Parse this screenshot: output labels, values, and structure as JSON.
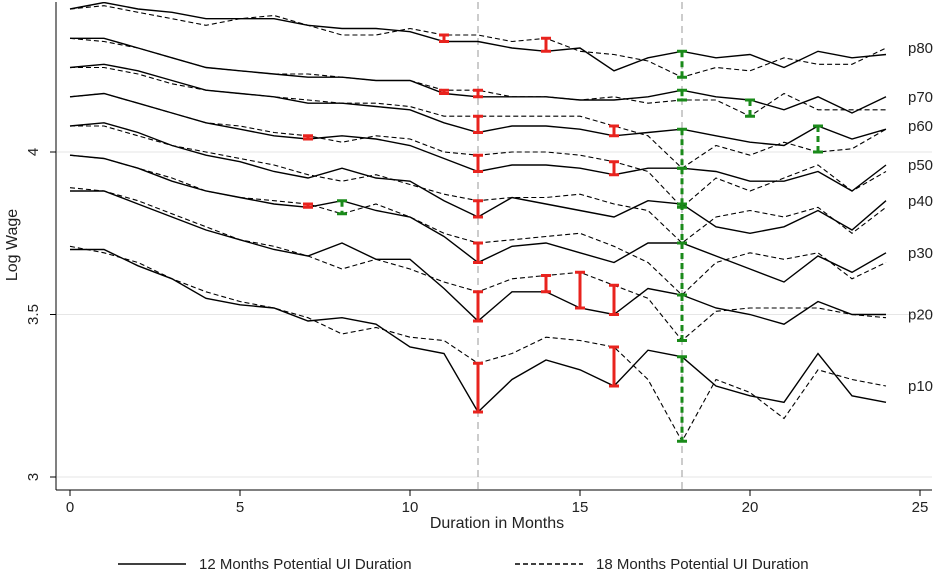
{
  "chart_data": {
    "type": "line",
    "xlabel": "Duration in Months",
    "ylabel": "Log Wage",
    "xlim": [
      0,
      25
    ],
    "ylim": [
      3,
      4.45
    ],
    "xticks": [
      0,
      5,
      10,
      15,
      20,
      25
    ],
    "yticks": [
      3,
      3.5,
      4
    ],
    "yticklabels": [
      "3",
      "3.5",
      "4"
    ],
    "grid": "horizontal",
    "vlines": [
      12,
      18
    ],
    "x": [
      0,
      1,
      2,
      3,
      4,
      5,
      6,
      7,
      8,
      9,
      10,
      11,
      12,
      13,
      14,
      15,
      16,
      17,
      18,
      19,
      20,
      21,
      22,
      23,
      24
    ],
    "legend": {
      "position": "bottom",
      "items": [
        {
          "label": "12 Months Potential UI Duration",
          "style": "solid"
        },
        {
          "label": "18 Months Potential UI Duration",
          "style": "dashed"
        }
      ]
    },
    "significance_colors": {
      "ui12_higher": "#e8231e",
      "ui18_higher": "#1a8a1a"
    },
    "series": [
      {
        "name": "p10",
        "ui12": [
          3.7,
          3.7,
          3.65,
          3.61,
          3.55,
          3.53,
          3.52,
          3.48,
          3.49,
          3.47,
          3.4,
          3.38,
          3.2,
          3.3,
          3.36,
          3.33,
          3.28,
          3.39,
          3.37,
          3.28,
          3.25,
          3.23,
          3.38,
          3.25,
          3.23
        ],
        "ui18": [
          3.71,
          3.69,
          3.66,
          3.61,
          3.57,
          3.54,
          3.52,
          3.49,
          3.44,
          3.46,
          3.43,
          3.42,
          3.35,
          3.38,
          3.43,
          3.42,
          3.4,
          3.3,
          3.11,
          3.3,
          3.26,
          3.18,
          3.33,
          3.3,
          3.28
        ]
      },
      {
        "name": "p20",
        "ui12": [
          3.88,
          3.88,
          3.84,
          3.8,
          3.76,
          3.73,
          3.7,
          3.68,
          3.72,
          3.67,
          3.67,
          3.58,
          3.48,
          3.57,
          3.57,
          3.52,
          3.5,
          3.58,
          3.56,
          3.52,
          3.5,
          3.47,
          3.54,
          3.5,
          3.5
        ],
        "ui18": [
          3.89,
          3.88,
          3.85,
          3.81,
          3.77,
          3.73,
          3.71,
          3.68,
          3.64,
          3.67,
          3.64,
          3.6,
          3.57,
          3.61,
          3.62,
          3.63,
          3.59,
          3.55,
          3.42,
          3.51,
          3.52,
          3.52,
          3.52,
          3.5,
          3.49
        ]
      },
      {
        "name": "p30",
        "ui12": [
          3.99,
          3.98,
          3.95,
          3.91,
          3.88,
          3.86,
          3.84,
          3.83,
          3.85,
          3.82,
          3.8,
          3.74,
          3.66,
          3.71,
          3.72,
          3.69,
          3.66,
          3.72,
          3.72,
          3.68,
          3.64,
          3.6,
          3.68,
          3.63,
          3.69
        ],
        "ui18": [
          3.99,
          3.98,
          3.95,
          3.92,
          3.88,
          3.86,
          3.85,
          3.84,
          3.81,
          3.84,
          3.8,
          3.75,
          3.72,
          3.73,
          3.74,
          3.75,
          3.71,
          3.66,
          3.56,
          3.66,
          3.69,
          3.67,
          3.69,
          3.61,
          3.66
        ]
      },
      {
        "name": "p40",
        "ui12": [
          4.08,
          4.09,
          4.06,
          4.02,
          3.99,
          3.97,
          3.94,
          3.92,
          3.95,
          3.92,
          3.91,
          3.85,
          3.8,
          3.86,
          3.84,
          3.82,
          3.8,
          3.85,
          3.84,
          3.77,
          3.75,
          3.77,
          3.82,
          3.76,
          3.85
        ],
        "ui18": [
          4.08,
          4.08,
          4.05,
          4.02,
          4.0,
          3.98,
          3.96,
          3.93,
          3.91,
          3.93,
          3.9,
          3.87,
          3.85,
          3.86,
          3.86,
          3.87,
          3.84,
          3.82,
          3.72,
          3.8,
          3.82,
          3.8,
          3.83,
          3.75,
          3.83
        ]
      },
      {
        "name": "p50",
        "ui12": [
          4.17,
          4.18,
          4.15,
          4.12,
          4.09,
          4.07,
          4.05,
          4.04,
          4.05,
          4.04,
          4.02,
          3.98,
          3.94,
          3.96,
          3.96,
          3.95,
          3.93,
          3.95,
          3.95,
          3.94,
          3.91,
          3.91,
          3.94,
          3.88,
          3.96
        ],
        "ui18": [
          4.17,
          4.18,
          4.15,
          4.12,
          4.09,
          4.08,
          4.06,
          4.05,
          4.03,
          4.05,
          4.04,
          4.0,
          3.99,
          4.0,
          4.0,
          3.99,
          3.97,
          3.94,
          3.83,
          3.92,
          3.88,
          3.92,
          3.96,
          3.88,
          3.94
        ]
      },
      {
        "name": "p60",
        "ui12": [
          4.26,
          4.27,
          4.25,
          4.22,
          4.19,
          4.18,
          4.17,
          4.15,
          4.15,
          4.14,
          4.13,
          4.09,
          4.06,
          4.08,
          4.08,
          4.07,
          4.05,
          4.06,
          4.07,
          4.05,
          4.03,
          4.02,
          4.08,
          4.04,
          4.07
        ],
        "ui18": [
          4.26,
          4.26,
          4.24,
          4.21,
          4.19,
          4.18,
          4.17,
          4.16,
          4.15,
          4.15,
          4.14,
          4.11,
          4.11,
          4.11,
          4.11,
          4.11,
          4.08,
          4.05,
          3.95,
          4.02,
          3.99,
          4.03,
          4.0,
          4.01,
          4.07
        ],
        "name_label_y": 4.08
      },
      {
        "name": "p70",
        "ui12": [
          4.35,
          4.35,
          4.32,
          4.29,
          4.26,
          4.25,
          4.24,
          4.23,
          4.23,
          4.22,
          4.22,
          4.18,
          4.17,
          4.17,
          4.17,
          4.16,
          4.16,
          4.17,
          4.19,
          4.17,
          4.16,
          4.13,
          4.17,
          4.12,
          4.17
        ],
        "ui18": [
          4.35,
          4.34,
          4.32,
          4.29,
          4.26,
          4.25,
          4.24,
          4.24,
          4.23,
          4.22,
          4.22,
          4.19,
          4.19,
          4.17,
          4.17,
          4.16,
          4.17,
          4.15,
          4.16,
          4.16,
          4.11,
          4.18,
          4.13,
          4.13,
          4.13
        ]
      },
      {
        "name": "p80",
        "ui12": [
          4.44,
          4.46,
          4.44,
          4.43,
          4.41,
          4.41,
          4.41,
          4.39,
          4.38,
          4.38,
          4.37,
          4.34,
          4.34,
          4.32,
          4.31,
          4.32,
          4.25,
          4.29,
          4.31,
          4.29,
          4.3,
          4.26,
          4.31,
          4.29,
          4.3
        ],
        "ui18": [
          4.44,
          4.45,
          4.43,
          4.41,
          4.39,
          4.41,
          4.42,
          4.39,
          4.36,
          4.36,
          4.38,
          4.36,
          4.36,
          4.34,
          4.35,
          4.31,
          4.3,
          4.28,
          4.23,
          4.26,
          4.25,
          4.29,
          4.27,
          4.27,
          4.32
        ]
      }
    ],
    "significance_markers": [
      {
        "series": "p10",
        "x": 12,
        "color": "red"
      },
      {
        "series": "p10",
        "x": 16,
        "color": "red"
      },
      {
        "series": "p10",
        "x": 18,
        "color": "green"
      },
      {
        "series": "p20",
        "x": 12,
        "color": "red"
      },
      {
        "series": "p20",
        "x": 14,
        "color": "red"
      },
      {
        "series": "p20",
        "x": 15,
        "color": "red"
      },
      {
        "series": "p20",
        "x": 16,
        "color": "red"
      },
      {
        "series": "p20",
        "x": 18,
        "color": "green"
      },
      {
        "series": "p30",
        "x": 7,
        "color": "red"
      },
      {
        "series": "p30",
        "x": 8,
        "color": "green"
      },
      {
        "series": "p30",
        "x": 12,
        "color": "red"
      },
      {
        "series": "p30",
        "x": 18,
        "color": "green"
      },
      {
        "series": "p40",
        "x": 12,
        "color": "red"
      },
      {
        "series": "p40",
        "x": 18,
        "color": "green"
      },
      {
        "series": "p50",
        "x": 7,
        "color": "red"
      },
      {
        "series": "p50",
        "x": 12,
        "color": "red"
      },
      {
        "series": "p50",
        "x": 16,
        "color": "red"
      },
      {
        "series": "p50",
        "x": 18,
        "color": "green"
      },
      {
        "series": "p60",
        "x": 12,
        "color": "red"
      },
      {
        "series": "p60",
        "x": 16,
        "color": "red"
      },
      {
        "series": "p60",
        "x": 18,
        "color": "green"
      },
      {
        "series": "p60",
        "x": 22,
        "color": "green"
      },
      {
        "series": "p70",
        "x": 11,
        "color": "red"
      },
      {
        "series": "p70",
        "x": 12,
        "color": "red"
      },
      {
        "series": "p70",
        "x": 18,
        "color": "green"
      },
      {
        "series": "p70",
        "x": 20,
        "color": "green"
      },
      {
        "series": "p80",
        "x": 11,
        "color": "red"
      },
      {
        "series": "p80",
        "x": 14,
        "color": "red"
      },
      {
        "series": "p80",
        "x": 18,
        "color": "green"
      }
    ]
  }
}
